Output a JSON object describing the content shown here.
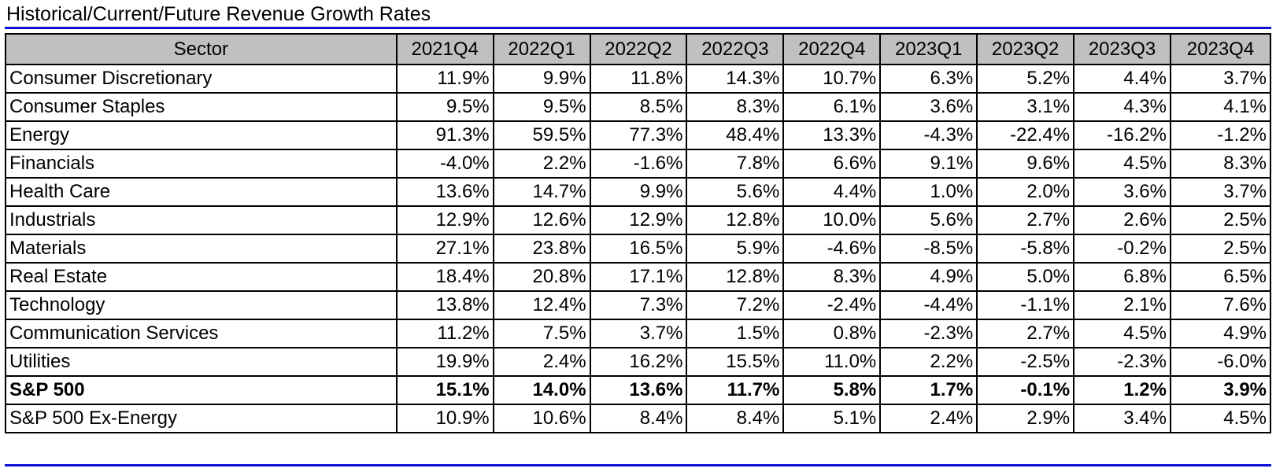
{
  "title": "Historical/Current/Future Revenue Growth Rates",
  "colors": {
    "rule": "#1010d8",
    "header_bg": "#c0c0c0",
    "grid": "#000000"
  },
  "table": {
    "headers": [
      "Sector",
      "2021Q4",
      "2022Q1",
      "2022Q2",
      "2022Q3",
      "2022Q4",
      "2023Q1",
      "2023Q2",
      "2023Q3",
      "2023Q4"
    ],
    "rows": [
      {
        "sector": "Consumer Discretionary",
        "values": [
          "11.9%",
          "9.9%",
          "11.8%",
          "14.3%",
          "10.7%",
          "6.3%",
          "5.2%",
          "4.4%",
          "3.7%"
        ]
      },
      {
        "sector": "Consumer Staples",
        "values": [
          "9.5%",
          "9.5%",
          "8.5%",
          "8.3%",
          "6.1%",
          "3.6%",
          "3.1%",
          "4.3%",
          "4.1%"
        ]
      },
      {
        "sector": "Energy",
        "values": [
          "91.3%",
          "59.5%",
          "77.3%",
          "48.4%",
          "13.3%",
          "-4.3%",
          "-22.4%",
          "-16.2%",
          "-1.2%"
        ]
      },
      {
        "sector": "Financials",
        "values": [
          "-4.0%",
          "2.2%",
          "-1.6%",
          "7.8%",
          "6.6%",
          "9.1%",
          "9.6%",
          "4.5%",
          "8.3%"
        ]
      },
      {
        "sector": "Health Care",
        "values": [
          "13.6%",
          "14.7%",
          "9.9%",
          "5.6%",
          "4.4%",
          "1.0%",
          "2.0%",
          "3.6%",
          "3.7%"
        ]
      },
      {
        "sector": "Industrials",
        "values": [
          "12.9%",
          "12.6%",
          "12.9%",
          "12.8%",
          "10.0%",
          "5.6%",
          "2.7%",
          "2.6%",
          "2.5%"
        ]
      },
      {
        "sector": "Materials",
        "values": [
          "27.1%",
          "23.8%",
          "16.5%",
          "5.9%",
          "-4.6%",
          "-8.5%",
          "-5.8%",
          "-0.2%",
          "2.5%"
        ]
      },
      {
        "sector": "Real Estate",
        "values": [
          "18.4%",
          "20.8%",
          "17.1%",
          "12.8%",
          "8.3%",
          "4.9%",
          "5.0%",
          "6.8%",
          "6.5%"
        ]
      },
      {
        "sector": "Technology",
        "values": [
          "13.8%",
          "12.4%",
          "7.3%",
          "7.2%",
          "-2.4%",
          "-4.4%",
          "-1.1%",
          "2.1%",
          "7.6%"
        ]
      },
      {
        "sector": "Communication Services",
        "values": [
          "11.2%",
          "7.5%",
          "3.7%",
          "1.5%",
          "0.8%",
          "-2.3%",
          "2.7%",
          "4.5%",
          "4.9%"
        ]
      },
      {
        "sector": "Utilities",
        "values": [
          "19.9%",
          "2.4%",
          "16.2%",
          "15.5%",
          "11.0%",
          "2.2%",
          "-2.5%",
          "-2.3%",
          "-6.0%"
        ]
      },
      {
        "sector": "S&P 500",
        "bold": true,
        "values": [
          "15.1%",
          "14.0%",
          "13.6%",
          "11.7%",
          "5.8%",
          "1.7%",
          "-0.1%",
          "1.2%",
          "3.9%"
        ]
      },
      {
        "sector": "S&P 500 Ex-Energy",
        "values": [
          "10.9%",
          "10.6%",
          "8.4%",
          "8.4%",
          "5.1%",
          "2.4%",
          "2.9%",
          "3.4%",
          "4.5%"
        ]
      }
    ]
  }
}
